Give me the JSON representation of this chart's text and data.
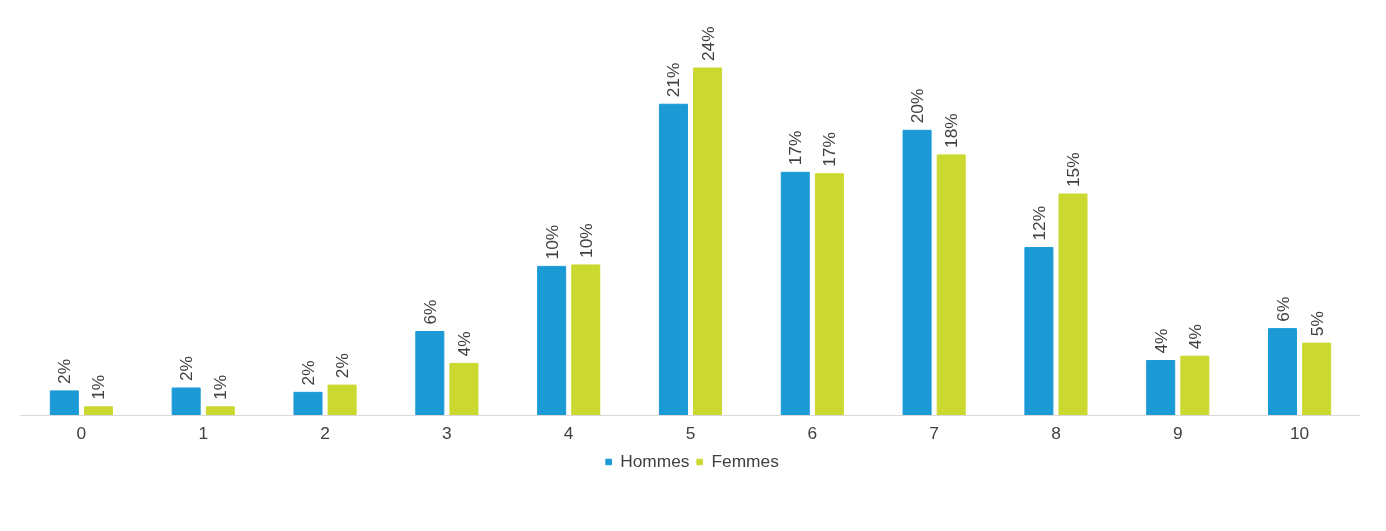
{
  "chart_data": {
    "type": "bar",
    "categories": [
      "0",
      "1",
      "2",
      "3",
      "4",
      "5",
      "6",
      "7",
      "8",
      "9",
      "10"
    ],
    "series": [
      {
        "name": "Hommes",
        "color": "#1b9ad6",
        "values": [
          1.7,
          1.9,
          1.6,
          5.8,
          10.3,
          21.5,
          16.8,
          19.7,
          11.6,
          3.8,
          6.0
        ],
        "value_labels": [
          "2%",
          "2%",
          "2%",
          "6%",
          "10%",
          "21%",
          "17%",
          "20%",
          "12%",
          "4%",
          "6%"
        ]
      },
      {
        "name": "Femmes",
        "color": "#cbd82f",
        "values": [
          0.6,
          0.6,
          2.1,
          3.6,
          10.4,
          24.0,
          16.7,
          18.0,
          15.3,
          4.1,
          5.0
        ],
        "value_labels": [
          "1%",
          "1%",
          "2%",
          "4%",
          "10%",
          "24%",
          "17%",
          "18%",
          "15%",
          "4%",
          "5%"
        ]
      }
    ],
    "legend": "bottom",
    "grid": false
  }
}
